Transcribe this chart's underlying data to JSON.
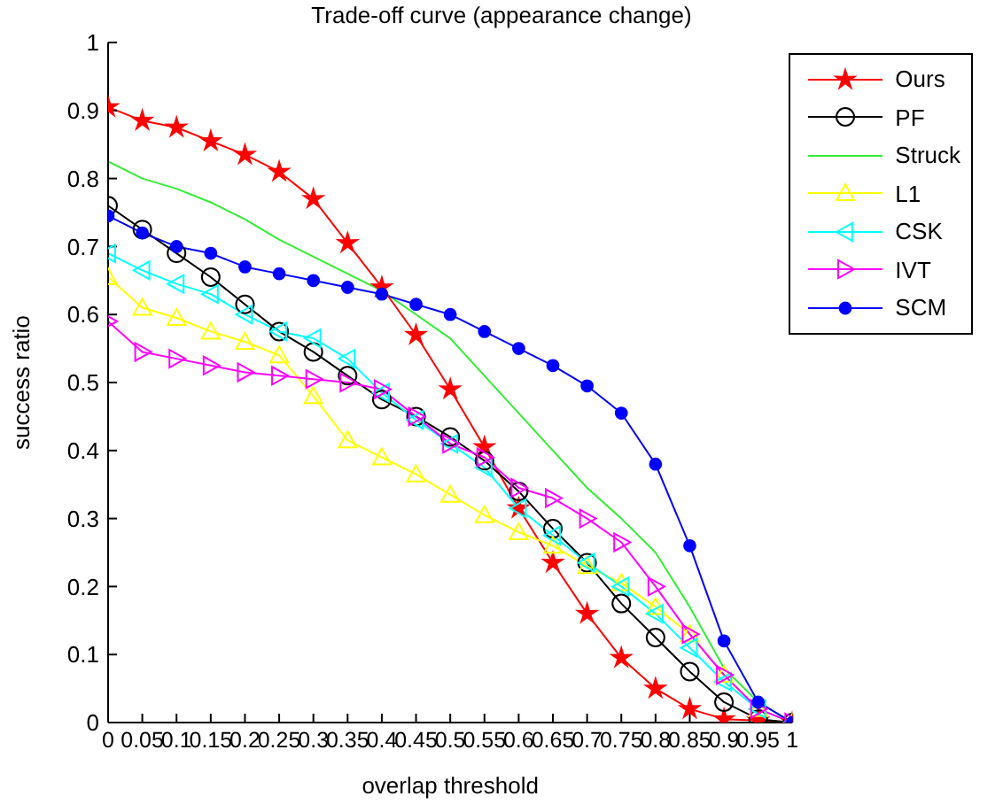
{
  "chart_data": {
    "type": "line",
    "title": "Trade-off curve (appearance change)",
    "xlabel": "overlap threshold",
    "ylabel": "success ratio",
    "x": [
      0,
      0.05,
      0.1,
      0.15,
      0.2,
      0.25,
      0.3,
      0.35,
      0.4,
      0.45,
      0.5,
      0.55,
      0.6,
      0.65,
      0.7,
      0.75,
      0.8,
      0.85,
      0.9,
      0.95,
      1
    ],
    "xlim": [
      0,
      1
    ],
    "xticks": [
      0,
      0.05,
      0.1,
      0.15,
      0.2,
      0.25,
      0.3,
      0.35,
      0.4,
      0.45,
      0.5,
      0.55,
      0.6,
      0.65,
      0.7,
      0.75,
      0.8,
      0.85,
      0.9,
      0.95,
      1
    ],
    "ylim": [
      0,
      1
    ],
    "yticks": [
      0,
      0.1,
      0.2,
      0.3,
      0.4,
      0.5,
      0.6,
      0.7,
      0.8,
      0.9,
      1
    ],
    "grid": false,
    "legend": "top right",
    "line_style": "solid",
    "series": [
      {
        "name": "Ours",
        "color": "#ff0000",
        "marker": "star",
        "values": [
          0.905,
          0.885,
          0.875,
          0.855,
          0.835,
          0.81,
          0.77,
          0.705,
          0.64,
          0.57,
          0.49,
          0.405,
          0.315,
          0.235,
          0.16,
          0.095,
          0.05,
          0.02,
          0.005,
          0.003,
          0
        ]
      },
      {
        "name": "PF",
        "color": "#000000",
        "marker": "circle",
        "values": [
          0.76,
          0.725,
          0.69,
          0.655,
          0.615,
          0.575,
          0.545,
          0.51,
          0.475,
          0.45,
          0.42,
          0.385,
          0.34,
          0.285,
          0.235,
          0.175,
          0.125,
          0.075,
          0.03,
          0.005,
          0
        ]
      },
      {
        "name": "Struck",
        "color": "#33ee33",
        "marker": "none",
        "values": [
          0.825,
          0.8,
          0.785,
          0.765,
          0.74,
          0.71,
          0.685,
          0.66,
          0.635,
          0.6,
          0.565,
          0.51,
          0.455,
          0.4,
          0.345,
          0.3,
          0.25,
          0.17,
          0.08,
          0.03,
          0
        ]
      },
      {
        "name": "L1",
        "color": "#ffff00",
        "marker": "triangle",
        "values": [
          0.655,
          0.61,
          0.595,
          0.575,
          0.56,
          0.54,
          0.48,
          0.415,
          0.39,
          0.365,
          0.335,
          0.305,
          0.28,
          0.26,
          0.23,
          0.205,
          0.17,
          0.13,
          0.07,
          0.02,
          0
        ]
      },
      {
        "name": "CSK",
        "color": "#00ffff",
        "marker": "triangle-left",
        "values": [
          0.69,
          0.665,
          0.645,
          0.63,
          0.6,
          0.575,
          0.565,
          0.535,
          0.485,
          0.445,
          0.41,
          0.375,
          0.315,
          0.275,
          0.235,
          0.2,
          0.16,
          0.11,
          0.06,
          0.02,
          0
        ]
      },
      {
        "name": "IVT",
        "color": "#ff00ff",
        "marker": "triangle-right",
        "values": [
          0.59,
          0.545,
          0.535,
          0.525,
          0.515,
          0.51,
          0.505,
          0.5,
          0.49,
          0.45,
          0.41,
          0.39,
          0.345,
          0.33,
          0.3,
          0.265,
          0.2,
          0.13,
          0.07,
          0.02,
          0
        ]
      },
      {
        "name": "SCM",
        "color": "#0000ff",
        "marker": "dot",
        "values": [
          0.745,
          0.72,
          0.7,
          0.69,
          0.67,
          0.66,
          0.65,
          0.64,
          0.63,
          0.615,
          0.6,
          0.575,
          0.55,
          0.525,
          0.495,
          0.455,
          0.38,
          0.26,
          0.12,
          0.03,
          0
        ]
      }
    ]
  }
}
